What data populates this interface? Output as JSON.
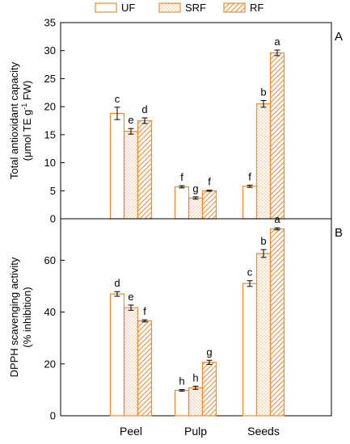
{
  "legend": [
    {
      "key": "UF",
      "label": "UF",
      "pattern": "none"
    },
    {
      "key": "SRF",
      "label": "SRF",
      "pattern": "dots"
    },
    {
      "key": "RF",
      "label": "RF",
      "pattern": "hatch"
    }
  ],
  "colors": {
    "bar_stroke": "#F28A2E",
    "error_bar": "#000000",
    "axis": "#000000"
  },
  "chart_data": [
    {
      "type": "bar",
      "panel_label": "A",
      "ylabel_line1": "Total antioxidant capacity",
      "ylabel_line2_pre": "(",
      "ylabel_mu": "μ",
      "ylabel_line2_mid": "mol TE g",
      "ylabel_sup": "-1",
      "ylabel_line2_post": " FW)",
      "ylim": [
        0,
        35
      ],
      "yticks": [
        0,
        5,
        10,
        15,
        20,
        25,
        30,
        35
      ],
      "categories": [
        "Peel",
        "Pulp",
        "Seeds"
      ],
      "series": [
        {
          "name": "UF",
          "values": [
            18.8,
            5.7,
            5.8
          ],
          "errors": [
            1.1,
            0.2,
            0.2
          ],
          "letters": [
            "c",
            "f",
            "f"
          ]
        },
        {
          "name": "SRF",
          "values": [
            15.6,
            3.7,
            20.5
          ],
          "errors": [
            0.5,
            0.2,
            0.6
          ],
          "letters": [
            "e",
            "g",
            "b"
          ]
        },
        {
          "name": "RF",
          "values": [
            17.5,
            5.0,
            29.6
          ],
          "errors": [
            0.5,
            0.1,
            0.5
          ],
          "letters": [
            "d",
            "f",
            "a"
          ]
        }
      ]
    },
    {
      "type": "bar",
      "panel_label": "B",
      "ylabel_line1": "DPPH scavenging activity",
      "ylabel_line2": "(% inhibition)",
      "ylim": [
        0,
        76
      ],
      "yticks": [
        0,
        20,
        40,
        60
      ],
      "categories": [
        "Peel",
        "Pulp",
        "Seeds"
      ],
      "series": [
        {
          "name": "UF",
          "values": [
            47.0,
            9.8,
            51.0
          ],
          "errors": [
            0.9,
            0.3,
            1.1
          ],
          "letters": [
            "d",
            "h",
            "c"
          ]
        },
        {
          "name": "SRF",
          "values": [
            41.7,
            10.8,
            62.6
          ],
          "errors": [
            1.0,
            0.6,
            1.5
          ],
          "letters": [
            "e",
            "h",
            "b"
          ]
        },
        {
          "name": "RF",
          "values": [
            36.6,
            20.6,
            72.1
          ],
          "errors": [
            0.4,
            0.8,
            0.4
          ],
          "letters": [
            "f",
            "g",
            "a"
          ]
        }
      ]
    }
  ]
}
